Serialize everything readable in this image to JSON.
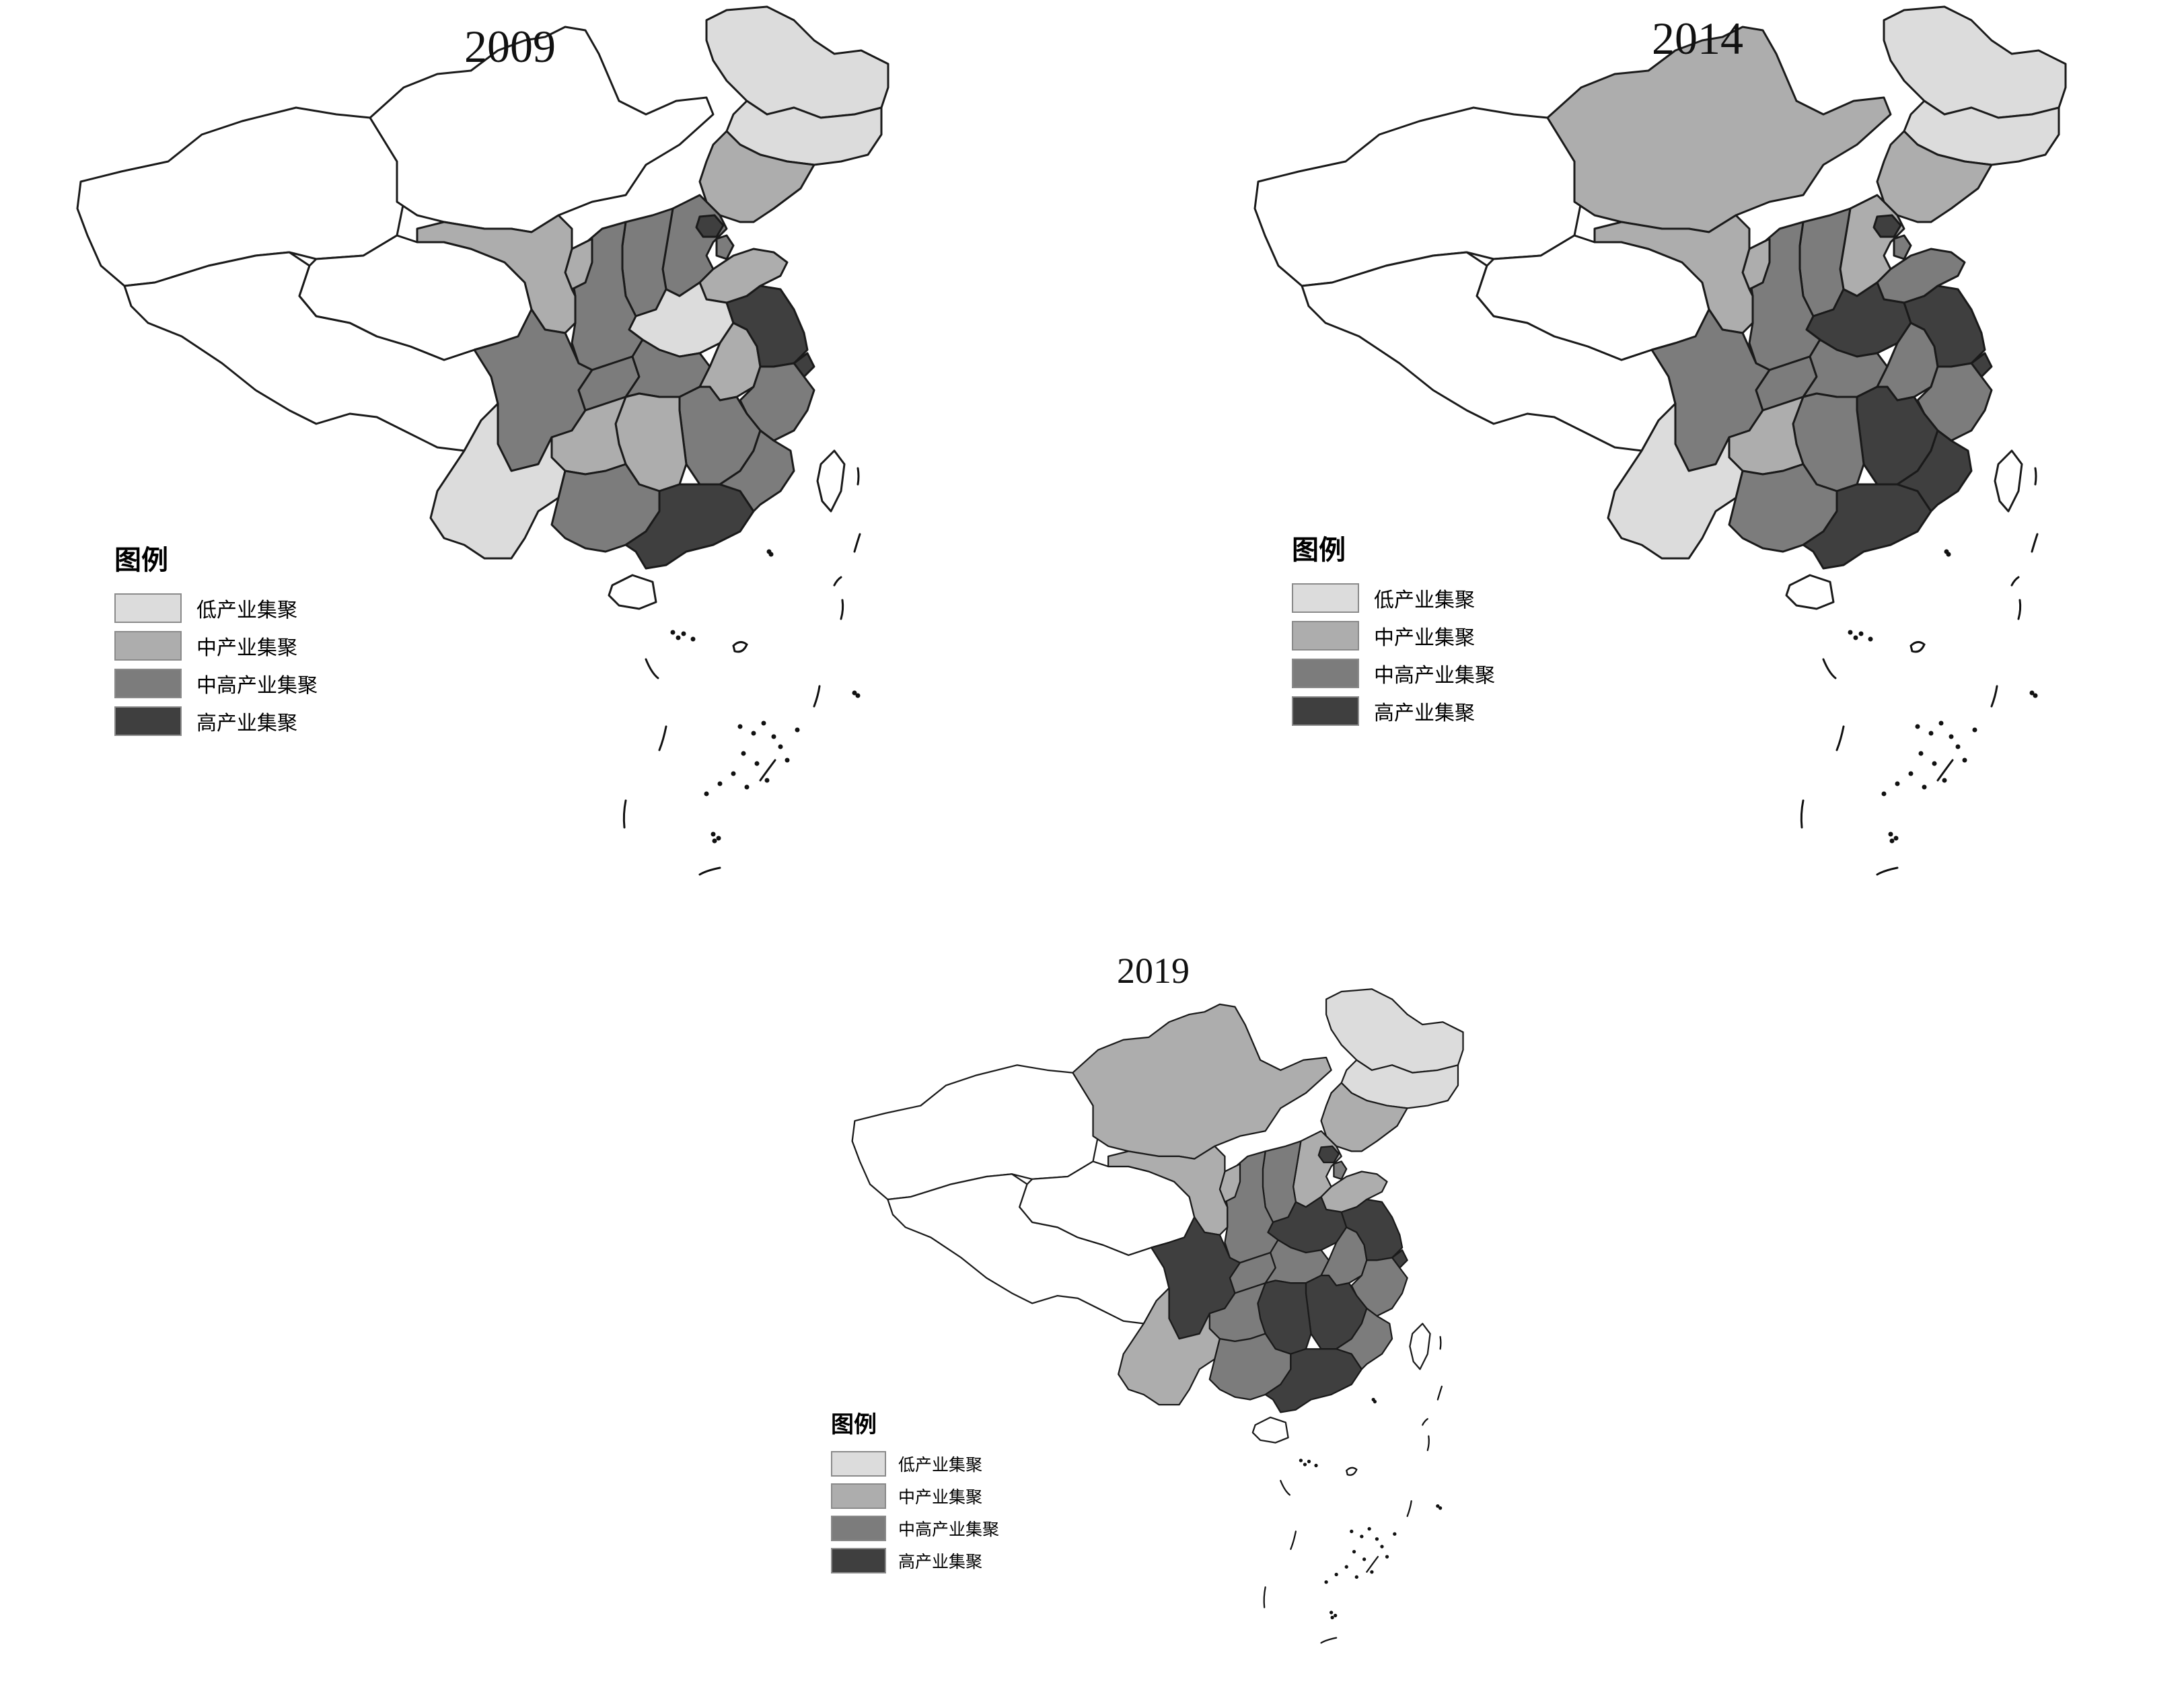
{
  "colors": {
    "none": "#ffffff",
    "low": "#dcdcdc",
    "mid": "#adadad",
    "midhigh": "#7c7c7c",
    "high": "#3f3f3f",
    "border": "#1a1a1a"
  },
  "legend": {
    "title": "图例",
    "items": [
      {
        "key": "low",
        "label": "低产业集聚"
      },
      {
        "key": "mid",
        "label": "中产业集聚"
      },
      {
        "key": "midhigh",
        "label": "中高产业集聚"
      },
      {
        "key": "high",
        "label": "高产业集聚"
      }
    ]
  },
  "maps": [
    {
      "year": "2009",
      "regions": {
        "xinjiang": "none",
        "tibet": "none",
        "qinghai": "none",
        "inner_mongolia": "none",
        "heilongjiang": "low",
        "jilin": "low",
        "liaoning": "mid",
        "hebei": "midhigh",
        "beijing": "high",
        "tianjin": "midhigh",
        "shanxi": "midhigh",
        "shandong": "mid",
        "henan": "low",
        "shaanxi": "midhigh",
        "ningxia": "mid",
        "gansu": "mid",
        "sichuan": "midhigh",
        "chongqing": "midhigh",
        "hubei": "midhigh",
        "anhui": "mid",
        "jiangsu": "high",
        "shanghai": "high",
        "zhejiang": "midhigh",
        "jiangxi": "midhigh",
        "hunan": "mid",
        "guizhou": "mid",
        "yunnan": "low",
        "guangxi": "midhigh",
        "guangdong": "high",
        "fujian": "midhigh",
        "hainan": "none",
        "taiwan": "none"
      }
    },
    {
      "year": "2014",
      "regions": {
        "xinjiang": "none",
        "tibet": "none",
        "qinghai": "none",
        "inner_mongolia": "mid",
        "heilongjiang": "low",
        "jilin": "low",
        "liaoning": "mid",
        "hebei": "mid",
        "beijing": "high",
        "tianjin": "midhigh",
        "shanxi": "midhigh",
        "shandong": "midhigh",
        "henan": "high",
        "shaanxi": "midhigh",
        "ningxia": "mid",
        "gansu": "mid",
        "sichuan": "midhigh",
        "chongqing": "midhigh",
        "hubei": "midhigh",
        "anhui": "midhigh",
        "jiangsu": "high",
        "shanghai": "high",
        "zhejiang": "midhigh",
        "jiangxi": "high",
        "hunan": "midhigh",
        "guizhou": "mid",
        "yunnan": "low",
        "guangxi": "midhigh",
        "guangdong": "high",
        "fujian": "high",
        "hainan": "none",
        "taiwan": "none"
      }
    },
    {
      "year": "2019",
      "regions": {
        "xinjiang": "none",
        "tibet": "none",
        "qinghai": "none",
        "inner_mongolia": "mid",
        "heilongjiang": "low",
        "jilin": "low",
        "liaoning": "mid",
        "hebei": "mid",
        "beijing": "high",
        "tianjin": "midhigh",
        "shanxi": "midhigh",
        "shandong": "mid",
        "henan": "high",
        "shaanxi": "midhigh",
        "ningxia": "mid",
        "gansu": "mid",
        "sichuan": "high",
        "chongqing": "midhigh",
        "hubei": "midhigh",
        "anhui": "midhigh",
        "jiangsu": "high",
        "shanghai": "high",
        "zhejiang": "midhigh",
        "jiangxi": "high",
        "hunan": "high",
        "guizhou": "midhigh",
        "yunnan": "mid",
        "guangxi": "midhigh",
        "guangdong": "high",
        "fujian": "midhigh",
        "hainan": "none",
        "taiwan": "none"
      }
    }
  ]
}
